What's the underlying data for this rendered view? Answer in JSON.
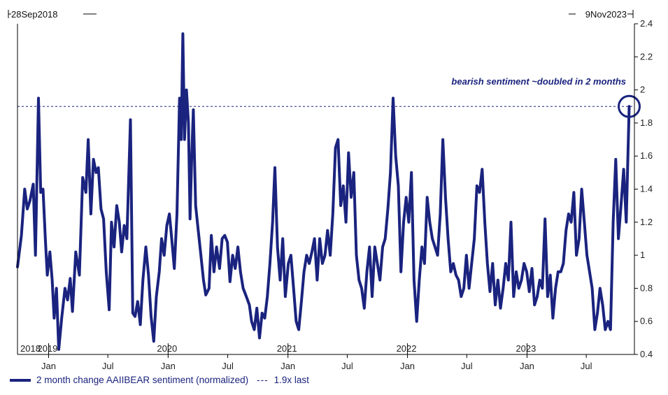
{
  "chart_data": {
    "type": "line",
    "start_label": "28Sep2018",
    "end_label": "9Nov2023",
    "ylim": [
      0.4,
      2.4
    ],
    "y_ticks": [
      "0.4",
      "0.6",
      "0.8",
      "1",
      "1.2",
      "1.4",
      "1.6",
      "1.8",
      "2",
      "2.2",
      "2.4"
    ],
    "x_ticks": [
      {
        "label": "Jan",
        "date": "2019-01-01"
      },
      {
        "label": "Jul",
        "date": "2019-07-01"
      },
      {
        "label": "Jan",
        "date": "2020-01-01"
      },
      {
        "label": "Jul",
        "date": "2020-07-01"
      },
      {
        "label": "Jan",
        "date": "2021-01-01"
      },
      {
        "label": "Jul",
        "date": "2021-07-01"
      },
      {
        "label": "Jan",
        "date": "2022-01-01"
      },
      {
        "label": "Jul",
        "date": "2022-07-01"
      },
      {
        "label": "Jan",
        "date": "2023-01-01"
      },
      {
        "label": "Jul",
        "date": "2023-07-01"
      }
    ],
    "year_labels": [
      {
        "label": "2018",
        "date": "2018-09-28"
      },
      {
        "label": "2019",
        "date": "2019-01-01"
      },
      {
        "label": "2020",
        "date": "2020-01-01"
      },
      {
        "label": "2021",
        "date": "2021-01-01"
      },
      {
        "label": "2022",
        "date": "2022-01-01"
      },
      {
        "label": "2023",
        "date": "2023-01-01"
      }
    ],
    "reference_line": {
      "value": 1.9,
      "label": "1.9x last",
      "color": "#1a237e"
    },
    "annotation": {
      "text": "bearish sentiment ~doubled in 2 months",
      "color": "#1a237e"
    },
    "series": [
      {
        "name": "2 month change AAIIBEAR sentiment (normalized)",
        "color": "#1a237e",
        "points": [
          [
            "2018-09-28",
            0.93
          ],
          [
            "2018-10-10",
            1.12
          ],
          [
            "2018-10-20",
            1.4
          ],
          [
            "2018-10-28",
            1.28
          ],
          [
            "2018-11-05",
            1.33
          ],
          [
            "2018-11-15",
            1.43
          ],
          [
            "2018-11-22",
            1.0
          ],
          [
            "2018-12-01",
            1.95
          ],
          [
            "2018-12-08",
            1.38
          ],
          [
            "2018-12-15",
            1.4
          ],
          [
            "2018-12-22",
            1.1
          ],
          [
            "2018-12-28",
            0.88
          ],
          [
            "2019-01-05",
            1.02
          ],
          [
            "2019-01-12",
            0.85
          ],
          [
            "2019-01-18",
            0.62
          ],
          [
            "2019-01-25",
            0.8
          ],
          [
            "2019-02-01",
            0.43
          ],
          [
            "2019-02-10",
            0.62
          ],
          [
            "2019-02-20",
            0.8
          ],
          [
            "2019-02-28",
            0.73
          ],
          [
            "2019-03-08",
            0.86
          ],
          [
            "2019-03-15",
            0.66
          ],
          [
            "2019-03-25",
            1.02
          ],
          [
            "2019-04-05",
            0.88
          ],
          [
            "2019-04-15",
            1.47
          ],
          [
            "2019-04-25",
            1.38
          ],
          [
            "2019-05-02",
            1.7
          ],
          [
            "2019-05-10",
            1.25
          ],
          [
            "2019-05-18",
            1.58
          ],
          [
            "2019-05-26",
            1.5
          ],
          [
            "2019-06-02",
            1.53
          ],
          [
            "2019-06-10",
            1.28
          ],
          [
            "2019-06-18",
            1.22
          ],
          [
            "2019-06-26",
            0.9
          ],
          [
            "2019-07-05",
            0.67
          ],
          [
            "2019-07-12",
            1.2
          ],
          [
            "2019-07-20",
            1.05
          ],
          [
            "2019-07-28",
            1.3
          ],
          [
            "2019-08-05",
            1.2
          ],
          [
            "2019-08-12",
            1.02
          ],
          [
            "2019-08-20",
            1.18
          ],
          [
            "2019-08-28",
            1.1
          ],
          [
            "2019-09-08",
            1.82
          ],
          [
            "2019-09-15",
            0.65
          ],
          [
            "2019-09-22",
            0.63
          ],
          [
            "2019-09-30",
            0.72
          ],
          [
            "2019-10-08",
            0.58
          ],
          [
            "2019-10-16",
            0.85
          ],
          [
            "2019-10-25",
            1.05
          ],
          [
            "2019-11-02",
            0.88
          ],
          [
            "2019-11-10",
            0.63
          ],
          [
            "2019-11-18",
            0.48
          ],
          [
            "2019-11-26",
            0.75
          ],
          [
            "2019-12-05",
            0.9
          ],
          [
            "2019-12-12",
            1.1
          ],
          [
            "2019-12-20",
            1.0
          ],
          [
            "2019-12-28",
            1.18
          ],
          [
            "2020-01-05",
            1.25
          ],
          [
            "2020-01-12",
            1.1
          ],
          [
            "2020-01-20",
            0.92
          ],
          [
            "2020-01-28",
            1.25
          ],
          [
            "2020-02-05",
            1.95
          ],
          [
            "2020-02-10",
            1.7
          ],
          [
            "2020-02-15",
            2.34
          ],
          [
            "2020-02-20",
            1.7
          ],
          [
            "2020-02-26",
            2.0
          ],
          [
            "2020-03-03",
            1.8
          ],
          [
            "2020-03-08",
            1.22
          ],
          [
            "2020-03-13",
            1.6
          ],
          [
            "2020-03-18",
            1.88
          ],
          [
            "2020-03-25",
            1.3
          ],
          [
            "2020-04-02",
            1.15
          ],
          [
            "2020-04-10",
            1.0
          ],
          [
            "2020-04-18",
            0.85
          ],
          [
            "2020-04-25",
            0.76
          ],
          [
            "2020-05-05",
            0.8
          ],
          [
            "2020-05-12",
            1.12
          ],
          [
            "2020-05-20",
            0.9
          ],
          [
            "2020-05-28",
            1.05
          ],
          [
            "2020-06-06",
            0.92
          ],
          [
            "2020-06-14",
            1.1
          ],
          [
            "2020-06-22",
            1.12
          ],
          [
            "2020-06-30",
            1.08
          ],
          [
            "2020-07-08",
            0.84
          ],
          [
            "2020-07-16",
            1.0
          ],
          [
            "2020-07-24",
            0.92
          ],
          [
            "2020-08-01",
            1.05
          ],
          [
            "2020-08-09",
            0.9
          ],
          [
            "2020-08-17",
            0.8
          ],
          [
            "2020-08-25",
            0.76
          ],
          [
            "2020-09-05",
            0.7
          ],
          [
            "2020-09-12",
            0.6
          ],
          [
            "2020-09-20",
            0.55
          ],
          [
            "2020-09-28",
            0.68
          ],
          [
            "2020-10-06",
            0.5
          ],
          [
            "2020-10-14",
            0.65
          ],
          [
            "2020-10-22",
            0.62
          ],
          [
            "2020-10-30",
            0.75
          ],
          [
            "2020-11-07",
            0.95
          ],
          [
            "2020-11-15",
            1.2
          ],
          [
            "2020-11-22",
            1.53
          ],
          [
            "2020-11-30",
            1.05
          ],
          [
            "2020-12-08",
            0.85
          ],
          [
            "2020-12-16",
            1.1
          ],
          [
            "2020-12-24",
            0.75
          ],
          [
            "2021-01-02",
            0.95
          ],
          [
            "2021-01-10",
            1.0
          ],
          [
            "2021-01-18",
            0.8
          ],
          [
            "2021-01-26",
            0.6
          ],
          [
            "2021-02-03",
            0.55
          ],
          [
            "2021-02-11",
            0.72
          ],
          [
            "2021-02-19",
            0.9
          ],
          [
            "2021-02-27",
            1.0
          ],
          [
            "2021-03-07",
            0.95
          ],
          [
            "2021-03-15",
            1.02
          ],
          [
            "2021-03-23",
            1.1
          ],
          [
            "2021-03-31",
            0.85
          ],
          [
            "2021-04-08",
            1.1
          ],
          [
            "2021-04-16",
            0.95
          ],
          [
            "2021-04-24",
            1.0
          ],
          [
            "2021-05-02",
            1.15
          ],
          [
            "2021-05-10",
            1.0
          ],
          [
            "2021-05-18",
            1.25
          ],
          [
            "2021-05-26",
            1.65
          ],
          [
            "2021-06-03",
            1.7
          ],
          [
            "2021-06-11",
            1.3
          ],
          [
            "2021-06-19",
            1.42
          ],
          [
            "2021-06-27",
            1.2
          ],
          [
            "2021-07-05",
            1.62
          ],
          [
            "2021-07-13",
            1.35
          ],
          [
            "2021-07-21",
            1.5
          ],
          [
            "2021-07-29",
            1.0
          ],
          [
            "2021-08-06",
            0.85
          ],
          [
            "2021-08-14",
            0.8
          ],
          [
            "2021-08-22",
            0.68
          ],
          [
            "2021-08-30",
            0.9
          ],
          [
            "2021-09-07",
            1.05
          ],
          [
            "2021-09-15",
            0.75
          ],
          [
            "2021-09-23",
            1.05
          ],
          [
            "2021-10-01",
            0.95
          ],
          [
            "2021-10-09",
            0.85
          ],
          [
            "2021-10-17",
            1.05
          ],
          [
            "2021-10-25",
            1.1
          ],
          [
            "2021-11-02",
            1.28
          ],
          [
            "2021-11-10",
            1.5
          ],
          [
            "2021-11-18",
            1.95
          ],
          [
            "2021-11-26",
            1.6
          ],
          [
            "2021-12-04",
            1.42
          ],
          [
            "2021-12-12",
            0.9
          ],
          [
            "2021-12-20",
            1.2
          ],
          [
            "2021-12-28",
            1.35
          ],
          [
            "2022-01-05",
            1.2
          ],
          [
            "2022-01-13",
            1.5
          ],
          [
            "2022-01-21",
            0.85
          ],
          [
            "2022-01-29",
            0.6
          ],
          [
            "2022-02-06",
            0.85
          ],
          [
            "2022-02-14",
            1.05
          ],
          [
            "2022-02-22",
            0.95
          ],
          [
            "2022-03-02",
            1.35
          ],
          [
            "2022-03-10",
            1.2
          ],
          [
            "2022-03-18",
            1.1
          ],
          [
            "2022-03-26",
            1.05
          ],
          [
            "2022-04-03",
            1.0
          ],
          [
            "2022-04-11",
            1.25
          ],
          [
            "2022-04-19",
            1.7
          ],
          [
            "2022-04-27",
            1.35
          ],
          [
            "2022-05-05",
            1.1
          ],
          [
            "2022-05-13",
            0.9
          ],
          [
            "2022-05-21",
            0.95
          ],
          [
            "2022-05-29",
            0.88
          ],
          [
            "2022-06-06",
            0.85
          ],
          [
            "2022-06-14",
            0.75
          ],
          [
            "2022-06-22",
            0.8
          ],
          [
            "2022-06-30",
            1.0
          ],
          [
            "2022-07-08",
            0.8
          ],
          [
            "2022-07-16",
            0.95
          ],
          [
            "2022-07-24",
            1.1
          ],
          [
            "2022-08-01",
            1.42
          ],
          [
            "2022-08-09",
            1.38
          ],
          [
            "2022-08-17",
            1.52
          ],
          [
            "2022-08-25",
            1.2
          ],
          [
            "2022-09-02",
            0.95
          ],
          [
            "2022-09-10",
            0.78
          ],
          [
            "2022-09-18",
            0.95
          ],
          [
            "2022-09-26",
            0.7
          ],
          [
            "2022-10-04",
            0.85
          ],
          [
            "2022-10-12",
            0.68
          ],
          [
            "2022-10-20",
            0.8
          ],
          [
            "2022-10-28",
            0.95
          ],
          [
            "2022-11-05",
            0.85
          ],
          [
            "2022-11-13",
            1.2
          ],
          [
            "2022-11-21",
            0.75
          ],
          [
            "2022-11-29",
            0.9
          ],
          [
            "2022-12-07",
            0.8
          ],
          [
            "2022-12-15",
            0.85
          ],
          [
            "2022-12-23",
            0.95
          ],
          [
            "2022-12-31",
            0.9
          ],
          [
            "2023-01-08",
            0.78
          ],
          [
            "2023-01-16",
            0.92
          ],
          [
            "2023-01-24",
            0.7
          ],
          [
            "2023-02-01",
            0.75
          ],
          [
            "2023-02-09",
            0.85
          ],
          [
            "2023-02-17",
            0.8
          ],
          [
            "2023-02-25",
            1.22
          ],
          [
            "2023-03-05",
            0.75
          ],
          [
            "2023-03-13",
            0.88
          ],
          [
            "2023-03-21",
            0.62
          ],
          [
            "2023-03-29",
            0.8
          ],
          [
            "2023-04-06",
            0.9
          ],
          [
            "2023-04-14",
            0.9
          ],
          [
            "2023-04-22",
            0.95
          ],
          [
            "2023-04-30",
            1.15
          ],
          [
            "2023-05-08",
            1.25
          ],
          [
            "2023-05-16",
            1.2
          ],
          [
            "2023-05-24",
            1.38
          ],
          [
            "2023-06-01",
            1.0
          ],
          [
            "2023-06-09",
            1.1
          ],
          [
            "2023-06-17",
            1.4
          ],
          [
            "2023-06-25",
            1.2
          ],
          [
            "2023-07-03",
            1.0
          ],
          [
            "2023-07-11",
            0.9
          ],
          [
            "2023-07-19",
            0.8
          ],
          [
            "2023-07-27",
            0.55
          ],
          [
            "2023-08-04",
            0.65
          ],
          [
            "2023-08-12",
            0.8
          ],
          [
            "2023-08-20",
            0.7
          ],
          [
            "2023-08-28",
            0.55
          ],
          [
            "2023-09-05",
            0.6
          ],
          [
            "2023-09-13",
            0.55
          ],
          [
            "2023-09-21",
            1.2
          ],
          [
            "2023-09-29",
            1.58
          ],
          [
            "2023-10-07",
            1.1
          ],
          [
            "2023-10-15",
            1.3
          ],
          [
            "2023-10-23",
            1.52
          ],
          [
            "2023-10-31",
            1.2
          ],
          [
            "2023-11-09",
            1.9
          ]
        ]
      }
    ]
  }
}
